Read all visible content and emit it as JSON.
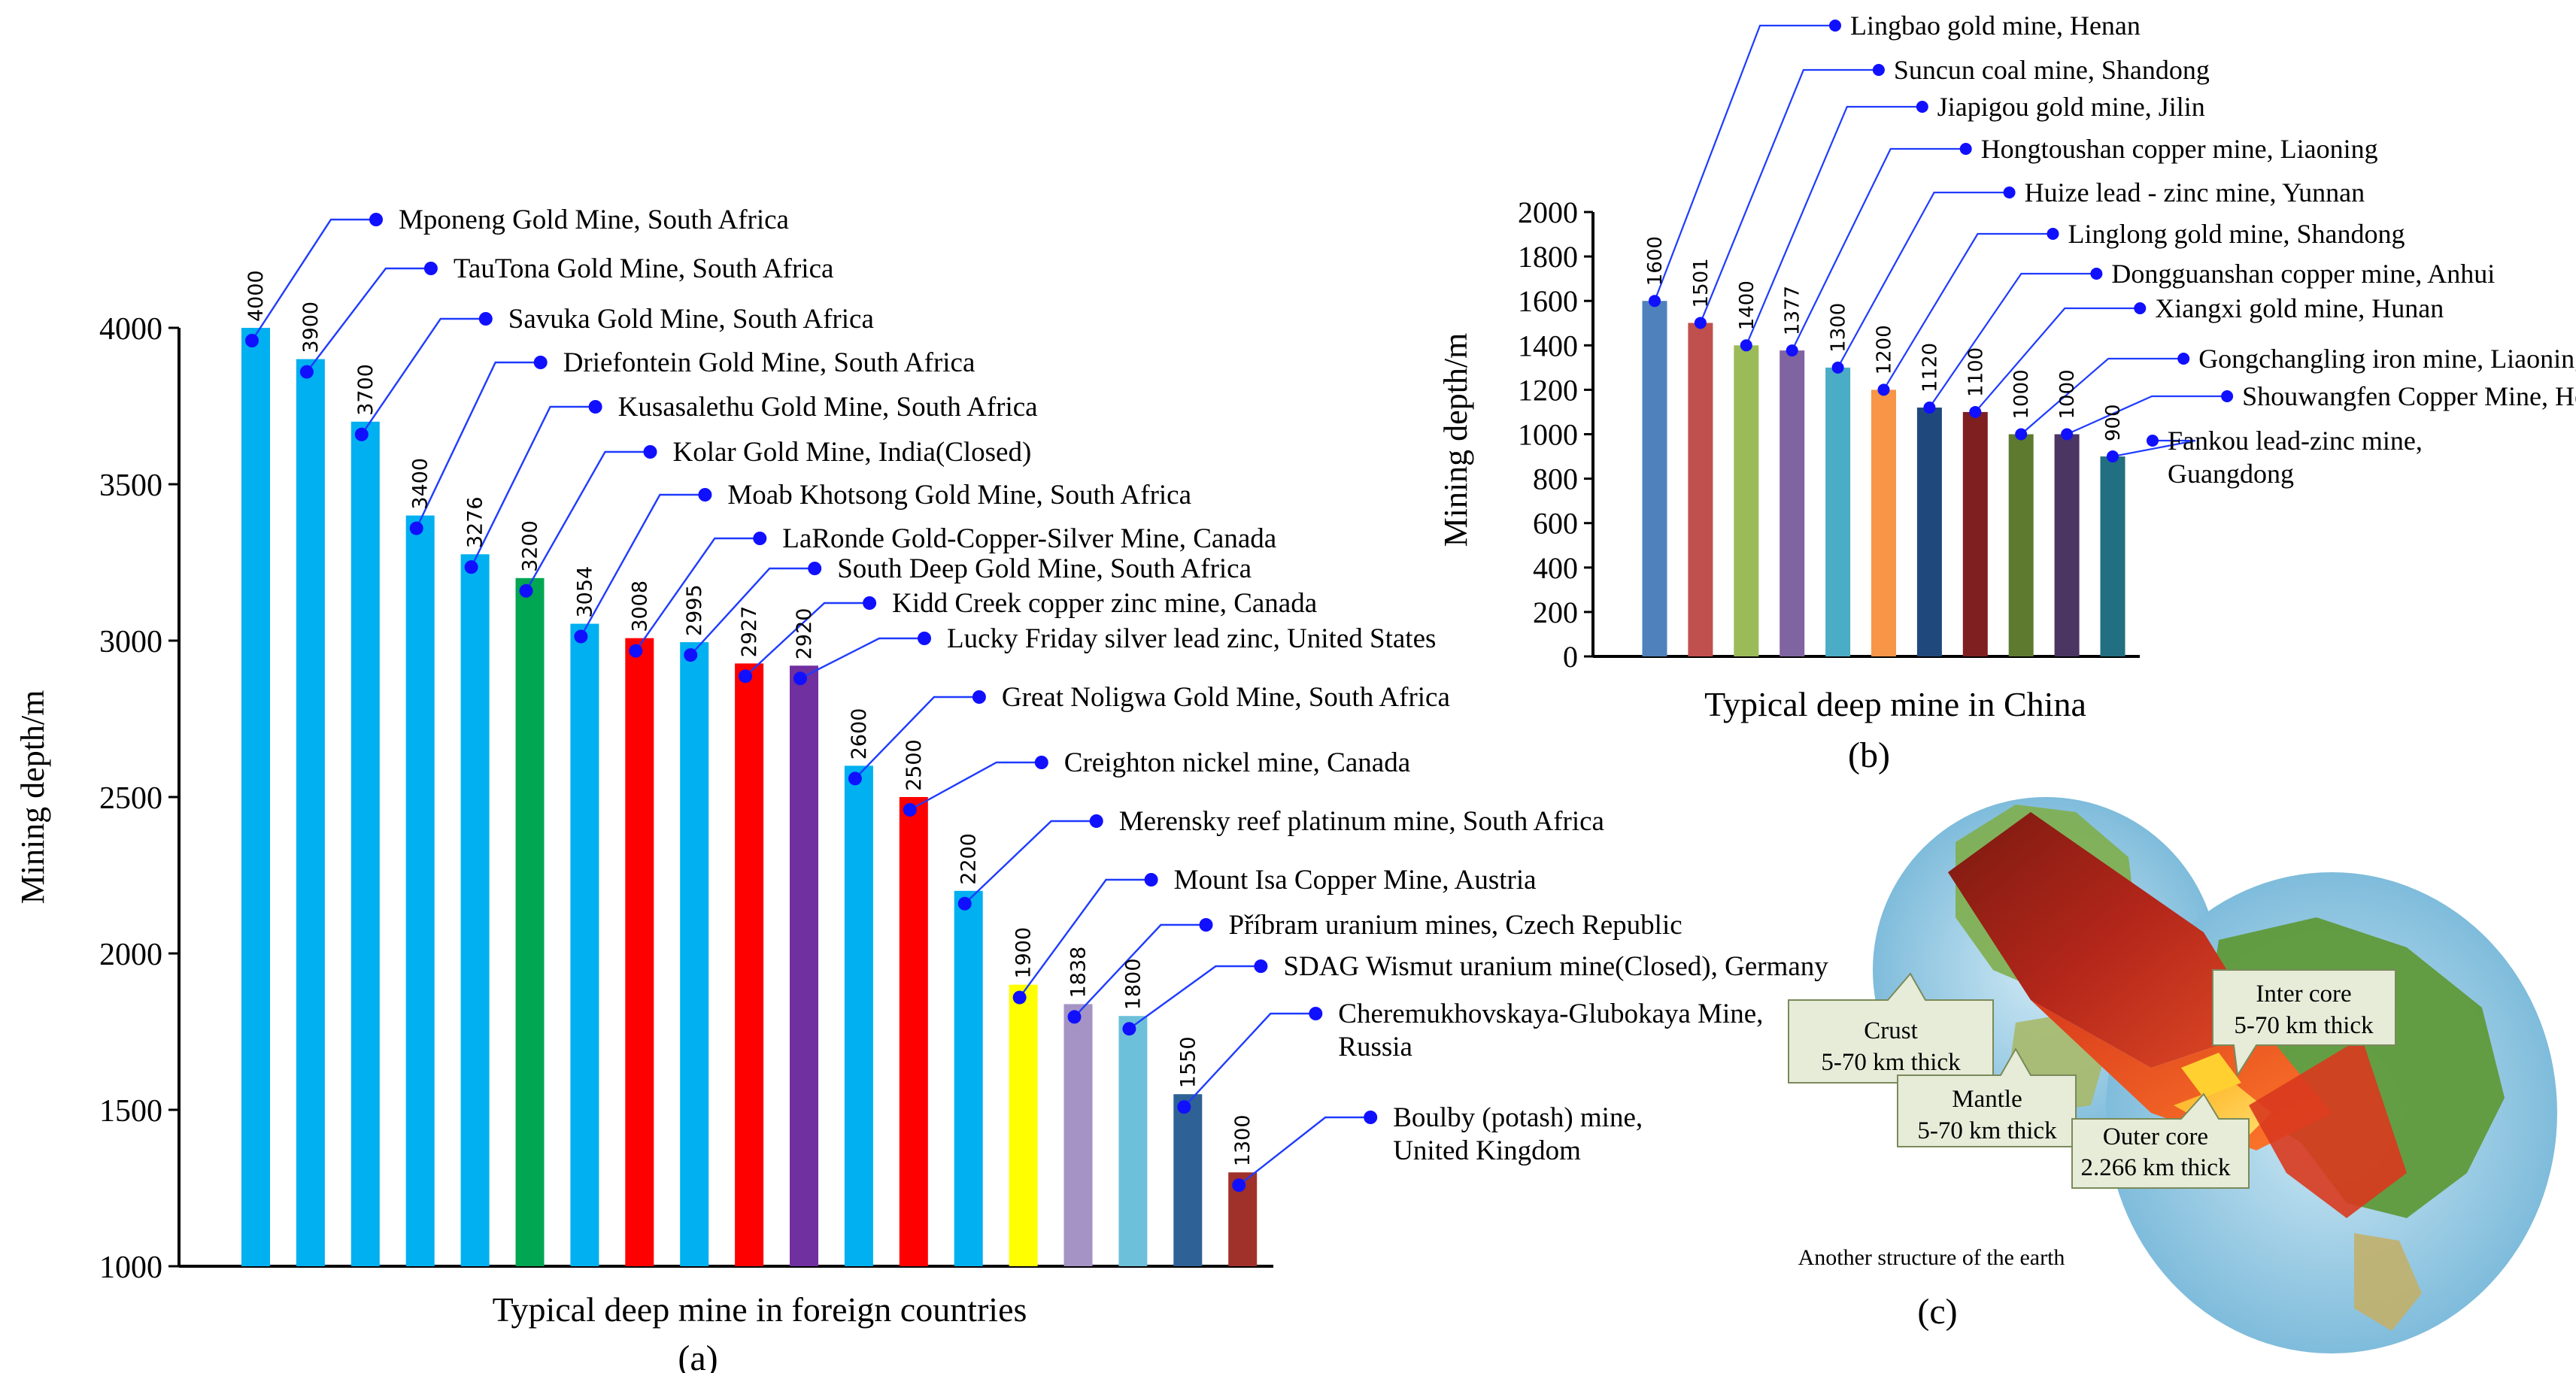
{
  "chart_data": [
    {
      "id": "a",
      "type": "bar",
      "xlabel": "Typical deep mine in foreign countries",
      "ylabel": "Mining depth/m",
      "ylim": [
        1000,
        4000
      ],
      "yticks": [
        1000,
        1500,
        2000,
        2500,
        3000,
        3500,
        4000
      ],
      "caption": "(a)",
      "grid": false,
      "bars": [
        {
          "label": "Mponeng Gold Mine, South Africa",
          "value": 4000,
          "value_label": "4000",
          "color": "#00B0F0"
        },
        {
          "label": "TauTona Gold Mine, South Africa",
          "value": 3900,
          "value_label": "3900",
          "color": "#00B0F0"
        },
        {
          "label": "Savuka Gold Mine, South Africa",
          "value": 3700,
          "value_label": "3700",
          "color": "#00B0F0"
        },
        {
          "label": "Driefontein Gold Mine, South Africa",
          "value": 3400,
          "value_label": "3400",
          "color": "#00B0F0"
        },
        {
          "label": "Kusasalethu Gold Mine, South Africa",
          "value": 3276,
          "value_label": "3276",
          "color": "#00B0F0"
        },
        {
          "label": "Kolar Gold Mine, India(Closed)",
          "value": 3200,
          "value_label": "3200",
          "color": "#00A651"
        },
        {
          "label": "Moab Khotsong Gold Mine, South Africa",
          "value": 3054,
          "value_label": "3054",
          "color": "#00B0F0"
        },
        {
          "label": "LaRonde  Gold-Copper-Silver Mine, Canada",
          "value": 3008,
          "value_label": "3008",
          "color": "#FF0000"
        },
        {
          "label": "South Deep Gold Mine, South Africa",
          "value": 2995,
          "value_label": "2995",
          "color": "#00B0F0"
        },
        {
          "label": "Kidd Creek copper zinc mine, Canada",
          "value": 2927,
          "value_label": "2927",
          "color": "#FF0000"
        },
        {
          "label": "Lucky Friday silver lead zinc, United States",
          "value": 2920,
          "value_label": "2920",
          "color": "#7030A0"
        },
        {
          "label": "Great Noligwa Gold Mine, South Africa",
          "value": 2600,
          "value_label": "2600",
          "color": "#00B0F0"
        },
        {
          "label": "Creighton nickel mine, Canada",
          "value": 2500,
          "value_label": "2500",
          "color": "#FF0000"
        },
        {
          "label": "Merensky reef platinum mine, South Africa",
          "value": 2200,
          "value_label": "2200",
          "color": "#00B0F0"
        },
        {
          "label": "Mount Isa Copper Mine, Austria",
          "value": 1900,
          "value_label": "1900",
          "color": "#FFFF00"
        },
        {
          "label": "Příbram uranium mines, Czech Republic",
          "value": 1838,
          "value_label": "1838",
          "color": "#A593C5"
        },
        {
          "label": "SDAG Wismut uranium mine(Closed), Germany",
          "value": 1800,
          "value_label": "1800",
          "color": "#6DC0DA"
        },
        {
          "label": "Cheremukhovskaya-Glubokaya Mine, Russia",
          "value": 1550,
          "value_label": "1550",
          "color": "#2E6296"
        },
        {
          "label": "Boulby (potash) mine, United Kingdom",
          "value": 1300,
          "value_label": "1300",
          "color": "#A0302A"
        }
      ]
    },
    {
      "id": "b",
      "type": "bar",
      "xlabel": "Typical deep mine in China",
      "ylabel": "Mining depth/m",
      "ylim": [
        0,
        2000
      ],
      "yticks": [
        0,
        200,
        400,
        600,
        800,
        1000,
        1200,
        1400,
        1600,
        1800,
        2000
      ],
      "caption": "(b)",
      "grid": false,
      "bars": [
        {
          "label": "Lingbao gold mine, Henan",
          "value": 1600,
          "value_label": "1600",
          "color": "#4F81BD"
        },
        {
          "label": "Suncun coal mine, Shandong",
          "value": 1501,
          "value_label": "1501",
          "color": "#C0504D"
        },
        {
          "label": "Jiapigou gold mine, Jilin",
          "value": 1400,
          "value_label": "1400",
          "color": "#9BBB59"
        },
        {
          "label": "Hongtoushan copper mine, Liaoning",
          "value": 1377,
          "value_label": "1377",
          "color": "#8064A2"
        },
        {
          "label": "Huize lead - zinc mine, Yunnan",
          "value": 1300,
          "value_label": "1300",
          "color": "#4BACC6"
        },
        {
          "label": "Linglong gold mine, Shandong",
          "value": 1200,
          "value_label": "1200",
          "color": "#F79646"
        },
        {
          "label": "Dongguanshan copper mine, Anhui",
          "value": 1120,
          "value_label": "1120",
          "color": "#1F497D"
        },
        {
          "label": "Xiangxi gold mine, Hunan",
          "value": 1100,
          "value_label": "1100",
          "color": "#7F1F1F"
        },
        {
          "label": "Gongchangling iron mine, Liaoning",
          "value": 1000,
          "value_label": "1000",
          "color": "#5D7A2E"
        },
        {
          "label": "Shouwangfen Copper Mine, Hebei",
          "value": 1000,
          "value_label": "1000",
          "color": "#4B3563"
        },
        {
          "label": "Fankou lead-zinc mine, Guangdong",
          "value": 900,
          "value_label": "900",
          "color": "#216F80"
        }
      ]
    }
  ],
  "earth_figure": {
    "caption": "(c)",
    "subtitle": "Another structure of the earth",
    "labels": [
      {
        "name": "crust",
        "lines": [
          "Crust",
          "5-70 km thick"
        ]
      },
      {
        "name": "mantle",
        "lines": [
          "Mantle",
          "5-70 km thick"
        ]
      },
      {
        "name": "outer-core",
        "lines": [
          "Outer core",
          "2.266 km thick"
        ]
      },
      {
        "name": "inner-core",
        "lines": [
          "Inter core",
          "5-70 km thick"
        ]
      }
    ]
  }
}
